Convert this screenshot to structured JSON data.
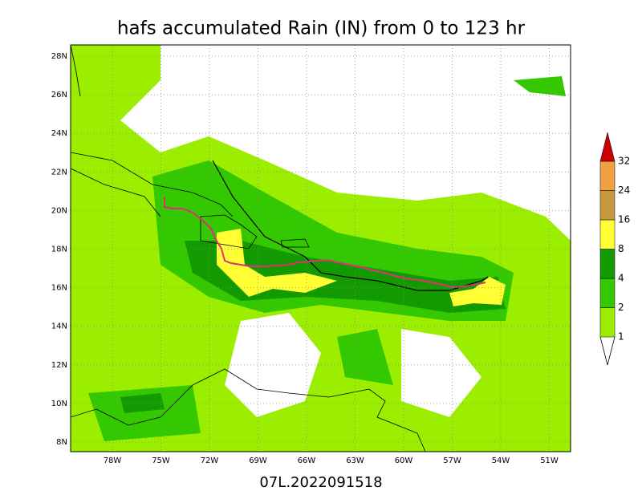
{
  "map": {
    "title": "hafs accumulated Rain (IN) from 0 to 123 hr",
    "caption": "07L.2022091518",
    "lat_labels": [
      "28N",
      "26N",
      "24N",
      "22N",
      "20N",
      "18N",
      "16N",
      "14N",
      "12N",
      "10N",
      "8N"
    ],
    "lon_labels": [
      "78W",
      "75W",
      "72W",
      "69W",
      "66W",
      "63W",
      "60W",
      "57W",
      "54W",
      "51W"
    ],
    "colorbar": {
      "levels": [
        "1",
        "2",
        "4",
        "8",
        "16",
        "24",
        "32"
      ],
      "colors": [
        "#9cee00",
        "#33c800",
        "#129a00",
        "#ffff33",
        "#c8963c",
        "#f0a040",
        "#c80000"
      ]
    }
  }
}
